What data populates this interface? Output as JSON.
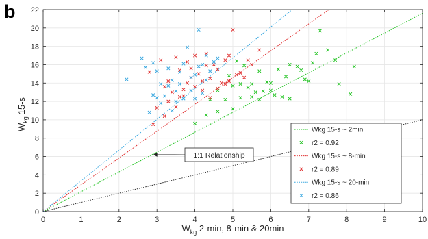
{
  "panel_label": "b",
  "chart_data": {
    "type": "scatter",
    "xlabel_main": "W",
    "xlabel_sub": "kg",
    "xlabel_rest": " 2-min, 8-min & 20min",
    "ylabel_main": "W",
    "ylabel_sub": "kg",
    "ylabel_rest": "15-s",
    "xlim": [
      0,
      10
    ],
    "ylim": [
      0,
      22
    ],
    "xticks": [
      0,
      1,
      2,
      3,
      4,
      5,
      6,
      7,
      8,
      9,
      10
    ],
    "yticks": [
      0,
      2,
      4,
      6,
      8,
      10,
      12,
      14,
      16,
      18,
      20,
      22
    ],
    "grid": true,
    "legend_position": "lower-right",
    "annotation": {
      "text": "1:1 Relationship",
      "arrow_target": [
        2.9,
        6.2
      ]
    },
    "identity_line": {
      "name": "1:1",
      "slope": 1,
      "color": "#333333"
    },
    "series": [
      {
        "fit_label": "Wkg 15-s ~ 2min",
        "r2_label": "r2 = 0.92",
        "color": "#22c322",
        "slope": 2.16,
        "points": [
          [
            4.0,
            9.6
          ],
          [
            4.3,
            10.5
          ],
          [
            4.6,
            10.9
          ],
          [
            5.0,
            11.2
          ],
          [
            4.8,
            12.2
          ],
          [
            5.2,
            12.4
          ],
          [
            5.5,
            12.5
          ],
          [
            5.6,
            13.0
          ],
          [
            5.4,
            13.5
          ],
          [
            5.8,
            13.1
          ],
          [
            6.0,
            13.2
          ],
          [
            6.3,
            12.5
          ],
          [
            6.5,
            12.3
          ],
          [
            5.9,
            14.1
          ],
          [
            6.2,
            15.5
          ],
          [
            6.5,
            16.0
          ],
          [
            6.8,
            15.4
          ],
          [
            7.0,
            14.2
          ],
          [
            7.2,
            17.2
          ],
          [
            7.5,
            17.6
          ],
          [
            7.8,
            13.9
          ],
          [
            8.1,
            12.8
          ],
          [
            8.2,
            15.8
          ],
          [
            7.7,
            16.5
          ],
          [
            7.3,
            19.7
          ],
          [
            5.2,
            13.9
          ],
          [
            4.6,
            13.2
          ],
          [
            4.9,
            14.8
          ],
          [
            5.0,
            13.7
          ],
          [
            4.4,
            12.2
          ],
          [
            5.7,
            15.3
          ],
          [
            5.3,
            15.9
          ],
          [
            5.1,
            16.4
          ],
          [
            6.0,
            14.0
          ],
          [
            6.4,
            14.7
          ],
          [
            6.7,
            15.8
          ],
          [
            7.1,
            16.2
          ],
          [
            5.5,
            13.9
          ],
          [
            6.1,
            12.7
          ],
          [
            6.9,
            14.4
          ],
          [
            5.7,
            12.2
          ]
        ]
      },
      {
        "fit_label": "Wkg 15-s ~ 8-min",
        "r2_label": "r2 = 0.89",
        "color": "#e03030",
        "slope": 2.92,
        "points": [
          [
            2.9,
            9.5
          ],
          [
            3.0,
            11.3
          ],
          [
            3.2,
            10.4
          ],
          [
            3.3,
            12.0
          ],
          [
            3.5,
            11.4
          ],
          [
            3.6,
            12.5
          ],
          [
            3.7,
            13.3
          ],
          [
            3.8,
            14.0
          ],
          [
            3.9,
            14.6
          ],
          [
            4.0,
            13.6
          ],
          [
            4.1,
            15.0
          ],
          [
            4.2,
            14.2
          ],
          [
            4.3,
            15.9
          ],
          [
            4.4,
            14.5
          ],
          [
            4.5,
            16.0
          ],
          [
            4.6,
            15.5
          ],
          [
            4.7,
            14.0
          ],
          [
            4.8,
            16.5
          ],
          [
            4.9,
            17.0
          ],
          [
            5.0,
            19.8
          ],
          [
            5.2,
            15.1
          ],
          [
            5.3,
            14.6
          ],
          [
            3.4,
            13.0
          ],
          [
            3.6,
            15.4
          ],
          [
            3.8,
            16.3
          ],
          [
            4.0,
            17.0
          ],
          [
            3.3,
            14.2
          ],
          [
            3.1,
            16.5
          ],
          [
            3.5,
            16.8
          ],
          [
            3.9,
            15.6
          ],
          [
            4.2,
            13.2
          ],
          [
            4.4,
            12.4
          ],
          [
            4.6,
            13.4
          ],
          [
            4.9,
            14.2
          ],
          [
            5.1,
            14.9
          ],
          [
            5.4,
            16.5
          ],
          [
            5.7,
            17.6
          ],
          [
            4.3,
            17.2
          ],
          [
            2.8,
            15.2
          ],
          [
            3.2,
            13.6
          ],
          [
            3.7,
            12.6
          ],
          [
            4.8,
            13.9
          ],
          [
            5.5,
            16.0
          ]
        ]
      },
      {
        "fit_label": "Wkg 15-s ~ 20-min",
        "r2_label": "r2 = 0.86",
        "color": "#3aa8e0",
        "slope": 3.35,
        "points": [
          [
            2.2,
            14.4
          ],
          [
            2.6,
            16.7
          ],
          [
            2.8,
            10.8
          ],
          [
            2.9,
            12.7
          ],
          [
            3.0,
            12.4
          ],
          [
            3.1,
            11.8
          ],
          [
            3.2,
            12.6
          ],
          [
            3.3,
            13.7
          ],
          [
            3.4,
            14.3
          ],
          [
            3.5,
            13.1
          ],
          [
            3.6,
            15.2
          ],
          [
            3.7,
            16.1
          ],
          [
            3.8,
            17.9
          ],
          [
            3.9,
            14.6
          ],
          [
            4.0,
            12.3
          ],
          [
            4.1,
            15.8
          ],
          [
            4.2,
            16.0
          ],
          [
            4.3,
            14.3
          ],
          [
            4.4,
            15.3
          ],
          [
            4.5,
            16.3
          ],
          [
            4.6,
            16.7
          ],
          [
            4.1,
            19.8
          ],
          [
            2.7,
            15.7
          ],
          [
            3.0,
            15.3
          ],
          [
            3.3,
            15.6
          ],
          [
            3.6,
            13.9
          ],
          [
            3.9,
            13.2
          ],
          [
            4.2,
            12.9
          ],
          [
            3.4,
            11.0
          ],
          [
            3.7,
            12.3
          ],
          [
            2.9,
            16.2
          ],
          [
            3.1,
            13.9
          ],
          [
            3.5,
            12.0
          ],
          [
            4.0,
            14.9
          ],
          [
            4.3,
            17.0
          ]
        ]
      }
    ]
  }
}
